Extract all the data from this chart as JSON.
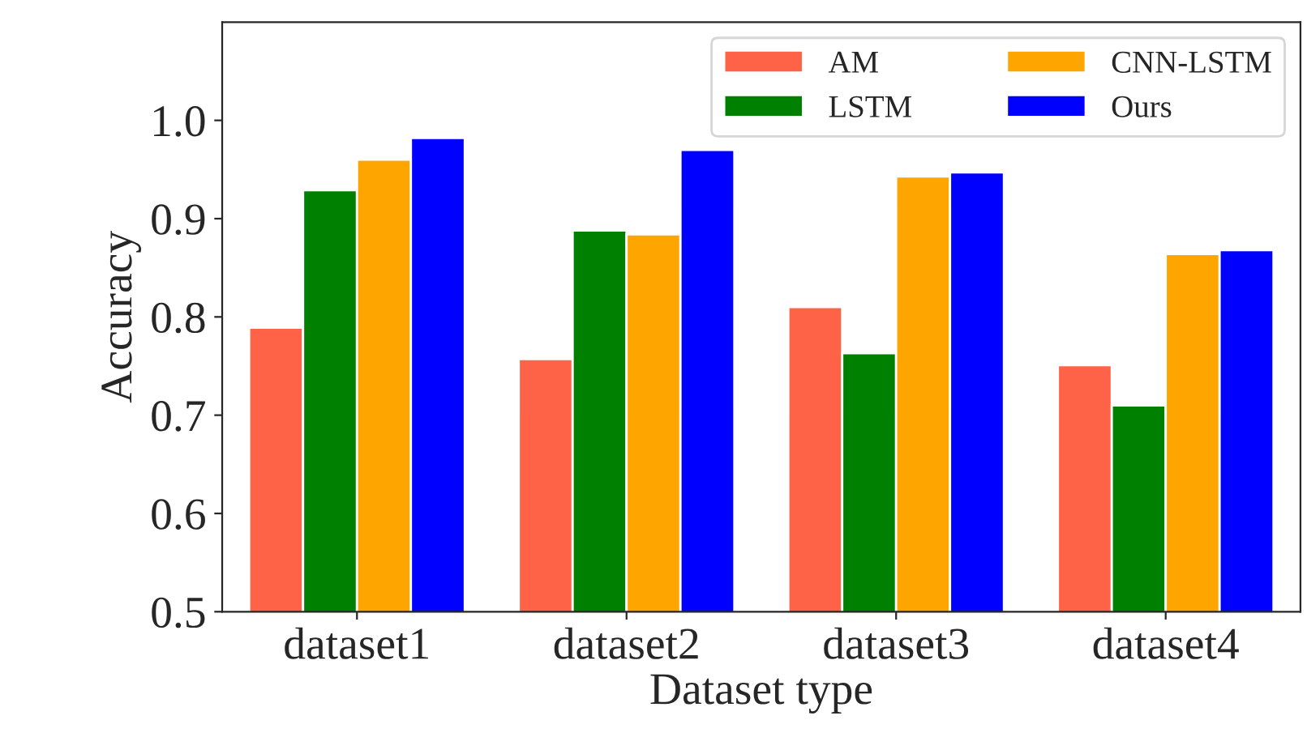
{
  "chart_data": {
    "type": "bar",
    "xlabel": "Dataset type",
    "ylabel": "Accuracy",
    "categories": [
      "dataset1",
      "dataset2",
      "dataset3",
      "dataset4"
    ],
    "series": [
      {
        "name": "AM",
        "color": "#ff6347",
        "values": [
          0.789,
          0.757,
          0.81,
          0.751
        ]
      },
      {
        "name": "LSTM",
        "color": "#008000",
        "values": [
          0.929,
          0.888,
          0.763,
          0.71
        ]
      },
      {
        "name": "CNN-LSTM",
        "color": "#ffa500",
        "values": [
          0.96,
          0.884,
          0.943,
          0.864
        ]
      },
      {
        "name": "Ours",
        "color": "#0000ff",
        "values": [
          0.982,
          0.97,
          0.947,
          0.868
        ]
      }
    ],
    "ylim": [
      0.5,
      1.1
    ],
    "yticks": [
      0.5,
      0.6,
      0.7,
      0.8,
      0.9,
      {
        "value": 1,
        "label": "1.0"
      }
    ],
    "grid": false,
    "legend": "top right"
  }
}
